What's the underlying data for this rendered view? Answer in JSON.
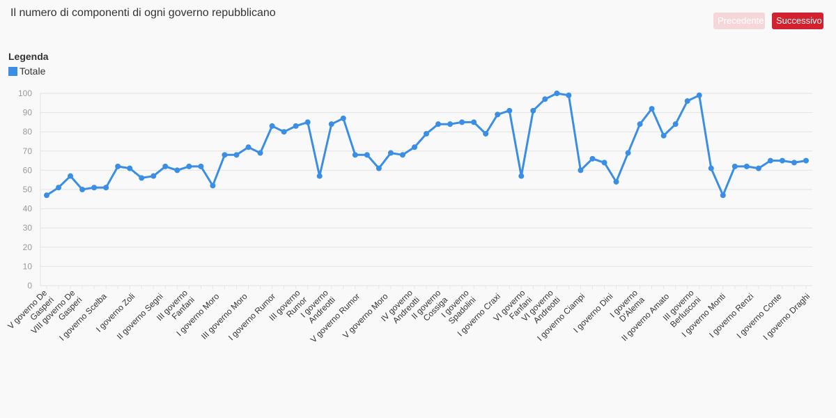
{
  "title": "Il numero di componenti di ogni governo repubblicano",
  "buttons": {
    "prev": "Precedente",
    "next": "Successivo"
  },
  "legend": {
    "title": "Legenda",
    "items": [
      {
        "label": "Totale",
        "color": "#3a8ee6"
      }
    ]
  },
  "colors": {
    "line": "#3a8ee6",
    "grid": "#e4e4e4",
    "tick_text": "#999999",
    "label_text": "#333333",
    "accent": "#d3222f"
  },
  "chart_data": {
    "type": "line",
    "title": "Il numero di componenti di ogni governo repubblicano",
    "xlabel": "",
    "ylabel": "",
    "ylim": [
      0,
      100
    ],
    "yticks": [
      0,
      10,
      20,
      30,
      40,
      50,
      60,
      70,
      80,
      90,
      100
    ],
    "grid": true,
    "legend_position": "top-left",
    "x_tick_labels": [
      "V governo De Gasperi",
      "VIII governo De Gasperi",
      "I governo Scelba",
      "I governo Zoli",
      "II governo Segni",
      "III governo Fanfani",
      "I governo Moro",
      "III governo Moro",
      "I governo Rumor",
      "III governo Rumor",
      "I governo Andreotti",
      "V governo Rumor",
      "V governo Moro",
      "IV governo Andreotti",
      "II governo Cossiga",
      "I governo Spadolini",
      "I governo Craxi",
      "VI governo Fanfani",
      "VI governo Andreotti",
      "I governo Ciampi",
      "I governo Dini",
      "I governo D'Alema",
      "II governo Amato",
      "III governo Berlusconi",
      "I governo Monti",
      "I governo Renzi",
      "I governo Conte",
      "I governo Draghi"
    ],
    "series": [
      {
        "name": "Totale",
        "values": [
          47,
          51,
          57,
          50,
          51,
          51,
          62,
          61,
          56,
          57,
          62,
          60,
          62,
          62,
          52,
          68,
          68,
          72,
          69,
          83,
          80,
          83,
          85,
          57,
          84,
          87,
          68,
          68,
          61,
          69,
          68,
          72,
          79,
          84,
          84,
          85,
          85,
          79,
          89,
          91,
          57,
          91,
          97,
          100,
          99,
          60,
          66,
          64,
          54,
          69,
          84,
          92,
          78,
          84,
          96,
          99,
          61,
          47,
          62,
          62,
          61,
          65,
          65,
          64,
          65
        ]
      }
    ]
  }
}
